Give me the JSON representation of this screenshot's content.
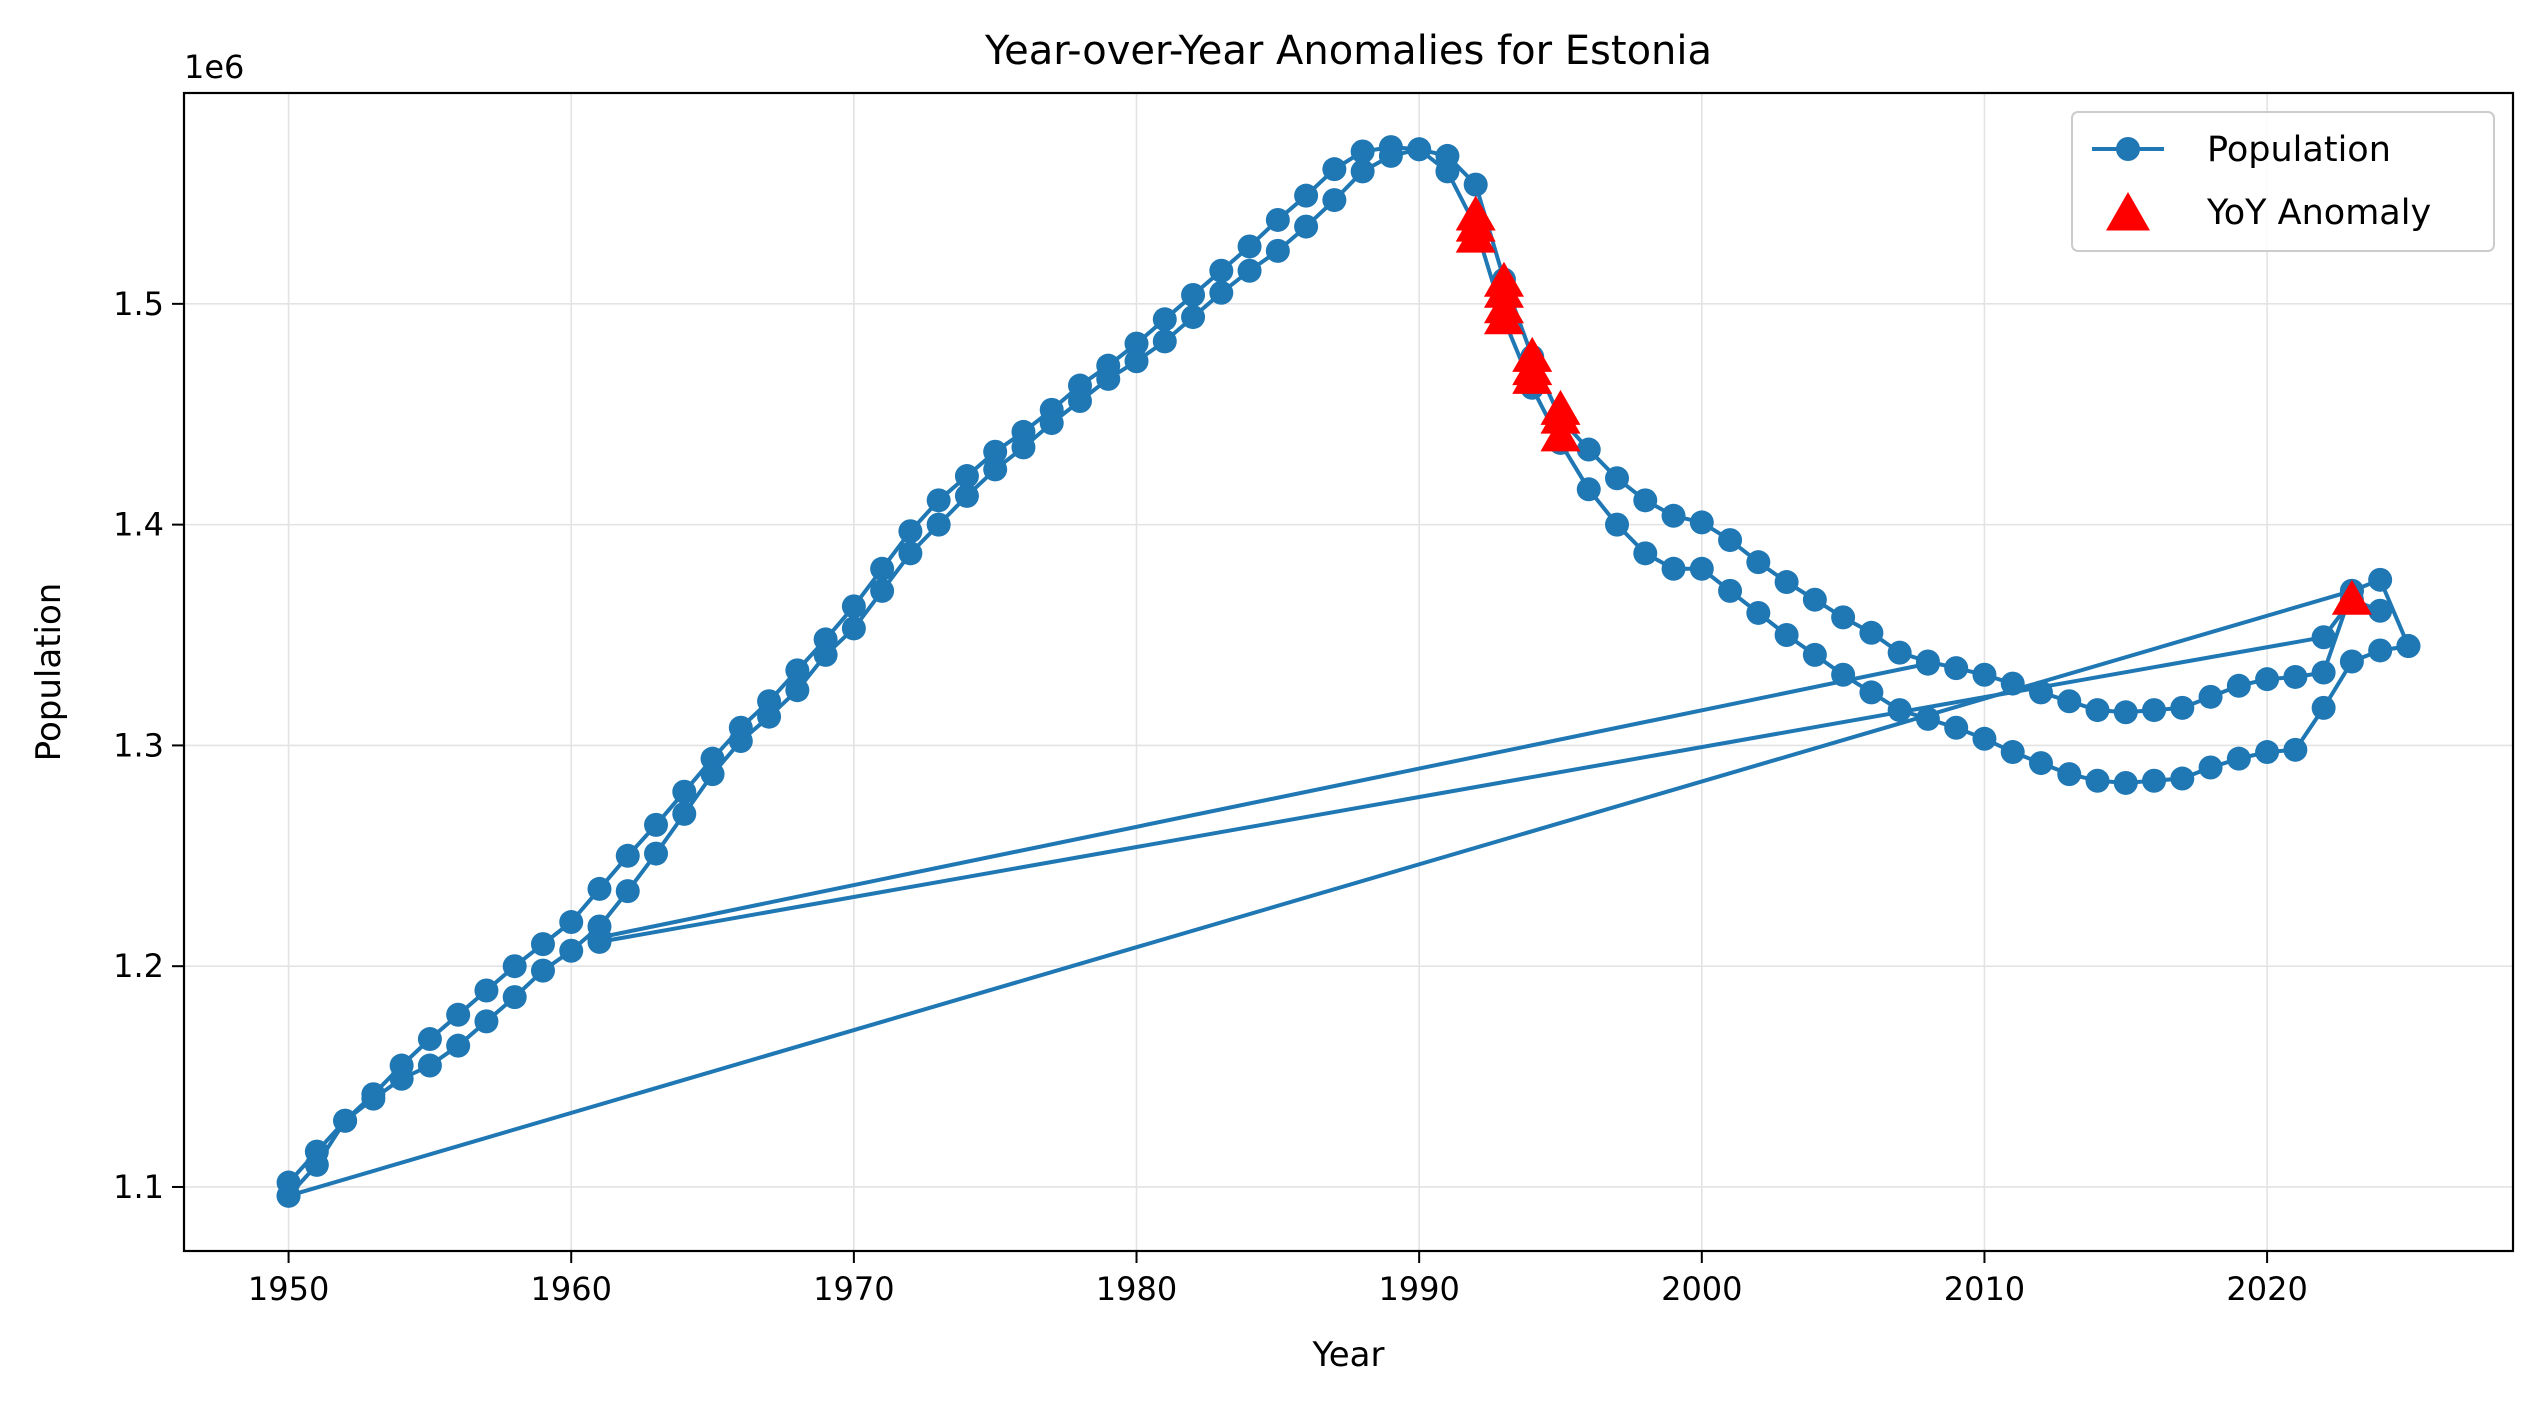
{
  "chart_data": {
    "type": "line",
    "title": "Year-over-Year Anomalies for Estonia",
    "xlabel": "Year",
    "ylabel": "Population",
    "y_offset_label": "1e6",
    "xlim": [
      1946.3,
      2028.7
    ],
    "ylim": [
      1.071,
      1.5955
    ],
    "x_ticks": [
      1950,
      1960,
      1970,
      1980,
      1990,
      2000,
      2010,
      2020
    ],
    "y_ticks": [
      1.1,
      1.2,
      1.3,
      1.4,
      1.5
    ],
    "x_tick_labels": [
      "1950",
      "1960",
      "1970",
      "1980",
      "1990",
      "2000",
      "2010",
      "2020"
    ],
    "y_tick_labels": [
      "1.1",
      "1.2",
      "1.3",
      "1.4",
      "1.5"
    ],
    "grid": true,
    "legend_position": "top-right",
    "colors": {
      "population": "#1f77b4",
      "anomaly": "#ff0000"
    },
    "series": [
      {
        "name": "Population",
        "marker": "circle",
        "line": true,
        "segments": [
          [
            [
              1950,
              1.102
            ],
            [
              1951,
              1.116
            ],
            [
              1952,
              1.13
            ],
            [
              1953,
              1.142
            ],
            [
              1954,
              1.155
            ],
            [
              1955,
              1.167
            ],
            [
              1956,
              1.178
            ],
            [
              1957,
              1.189
            ],
            [
              1958,
              1.2
            ],
            [
              1959,
              1.21
            ],
            [
              1960,
              1.22
            ],
            [
              1961,
              1.235
            ],
            [
              1962,
              1.25
            ],
            [
              1963,
              1.264
            ],
            [
              1964,
              1.279
            ],
            [
              1965,
              1.294
            ],
            [
              1966,
              1.308
            ],
            [
              1967,
              1.32
            ],
            [
              1968,
              1.334
            ],
            [
              1969,
              1.348
            ],
            [
              1970,
              1.363
            ],
            [
              1971,
              1.38
            ],
            [
              1972,
              1.397
            ],
            [
              1973,
              1.411
            ],
            [
              1974,
              1.422
            ],
            [
              1975,
              1.433
            ],
            [
              1976,
              1.442
            ],
            [
              1977,
              1.452
            ],
            [
              1978,
              1.463
            ],
            [
              1979,
              1.472
            ],
            [
              1980,
              1.482
            ],
            [
              1981,
              1.493
            ],
            [
              1982,
              1.504
            ],
            [
              1983,
              1.515
            ],
            [
              1984,
              1.526
            ],
            [
              1985,
              1.538
            ],
            [
              1986,
              1.549
            ],
            [
              1987,
              1.561
            ],
            [
              1988,
              1.569
            ],
            [
              1989,
              1.571
            ],
            [
              1990,
              1.57
            ],
            [
              1991,
              1.567
            ],
            [
              1992,
              1.554
            ],
            [
              1993,
              1.511
            ],
            [
              1994,
              1.476
            ],
            [
              1995,
              1.448
            ],
            [
              1996,
              1.434
            ],
            [
              1997,
              1.421
            ],
            [
              1998,
              1.411
            ],
            [
              1999,
              1.404
            ],
            [
              2000,
              1.401
            ],
            [
              2001,
              1.393
            ],
            [
              2002,
              1.383
            ],
            [
              2003,
              1.374
            ],
            [
              2004,
              1.366
            ],
            [
              2005,
              1.358
            ],
            [
              2006,
              1.351
            ],
            [
              2007,
              1.342
            ],
            [
              2008,
              1.338
            ],
            [
              2009,
              1.335
            ],
            [
              2010,
              1.332
            ],
            [
              2011,
              1.328
            ],
            [
              2012,
              1.324
            ],
            [
              2013,
              1.32
            ],
            [
              2014,
              1.316
            ],
            [
              2015,
              1.315
            ],
            [
              2016,
              1.316
            ],
            [
              2017,
              1.317
            ],
            [
              2018,
              1.322
            ],
            [
              2019,
              1.327
            ],
            [
              2020,
              1.33
            ],
            [
              2021,
              1.331
            ],
            [
              2022,
              1.333
            ],
            [
              2023,
              1.37
            ],
            [
              2024,
              1.375
            ],
            [
              2025,
              1.345
            ]
          ],
          [
            [
              1950,
              1.096
            ],
            [
              2023,
              1.37
            ]
          ],
          [
            [
              1950,
              1.096
            ],
            [
              1951,
              1.11
            ],
            [
              1952,
              1.13
            ],
            [
              1953,
              1.14
            ],
            [
              1954,
              1.149
            ],
            [
              1955,
              1.155
            ],
            [
              1956,
              1.164
            ],
            [
              1957,
              1.175
            ],
            [
              1958,
              1.186
            ],
            [
              1959,
              1.198
            ],
            [
              1960,
              1.207
            ],
            [
              1961,
              1.218
            ],
            [
              1962,
              1.234
            ],
            [
              1963,
              1.251
            ],
            [
              1964,
              1.269
            ],
            [
              1965,
              1.287
            ],
            [
              1966,
              1.302
            ],
            [
              1967,
              1.313
            ],
            [
              1968,
              1.325
            ],
            [
              1969,
              1.341
            ],
            [
              1970,
              1.353
            ],
            [
              1971,
              1.37
            ],
            [
              1972,
              1.387
            ],
            [
              1973,
              1.4
            ],
            [
              1974,
              1.413
            ],
            [
              1975,
              1.425
            ],
            [
              1976,
              1.435
            ],
            [
              1977,
              1.446
            ],
            [
              1978,
              1.456
            ],
            [
              1979,
              1.466
            ],
            [
              1980,
              1.474
            ],
            [
              1981,
              1.483
            ],
            [
              1982,
              1.494
            ],
            [
              1983,
              1.505
            ],
            [
              1984,
              1.515
            ],
            [
              1985,
              1.524
            ],
            [
              1986,
              1.535
            ],
            [
              1987,
              1.547
            ],
            [
              1988,
              1.56
            ],
            [
              1989,
              1.567
            ],
            [
              1990,
              1.57
            ],
            [
              1991,
              1.56
            ],
            [
              1992,
              1.535
            ],
            [
              1993,
              1.493
            ],
            [
              1994,
              1.462
            ],
            [
              1995,
              1.437
            ],
            [
              1996,
              1.416
            ],
            [
              1997,
              1.4
            ],
            [
              1998,
              1.387
            ],
            [
              1999,
              1.38
            ],
            [
              2000,
              1.38
            ],
            [
              2001,
              1.37
            ],
            [
              2002,
              1.36
            ],
            [
              2003,
              1.35
            ],
            [
              2004,
              1.341
            ],
            [
              2005,
              1.332
            ],
            [
              2006,
              1.324
            ],
            [
              2007,
              1.316
            ],
            [
              2008,
              1.312
            ],
            [
              2009,
              1.308
            ],
            [
              2010,
              1.303
            ],
            [
              2011,
              1.297
            ],
            [
              2012,
              1.292
            ],
            [
              2013,
              1.287
            ],
            [
              2014,
              1.284
            ],
            [
              2015,
              1.283
            ],
            [
              2016,
              1.284
            ],
            [
              2017,
              1.285
            ],
            [
              2018,
              1.29
            ],
            [
              2019,
              1.294
            ],
            [
              2020,
              1.297
            ],
            [
              2021,
              1.298
            ],
            [
              2022,
              1.317
            ],
            [
              2023,
              1.338
            ],
            [
              2024,
              1.343
            ],
            [
              2025,
              1.345
            ]
          ],
          [
            [
              1961,
              1.213
            ],
            [
              2008,
              1.337
            ]
          ],
          [
            [
              1961,
              1.211
            ],
            [
              2022,
              1.349
            ],
            [
              2023,
              1.366
            ],
            [
              2024,
              1.361
            ]
          ]
        ]
      },
      {
        "name": "YoY Anomaly",
        "marker": "triangle",
        "line": false,
        "points": [
          [
            1992,
            1.54
          ],
          [
            1992,
            1.535
          ],
          [
            1992,
            1.53
          ],
          [
            1993,
            1.51
          ],
          [
            1993,
            1.505
          ],
          [
            1993,
            1.498
          ],
          [
            1993,
            1.493
          ],
          [
            1994,
            1.476
          ],
          [
            1994,
            1.47
          ],
          [
            1994,
            1.466
          ],
          [
            1995,
            1.452
          ],
          [
            1995,
            1.448
          ],
          [
            1995,
            1.44
          ],
          [
            2023,
            1.366
          ]
        ]
      }
    ]
  }
}
